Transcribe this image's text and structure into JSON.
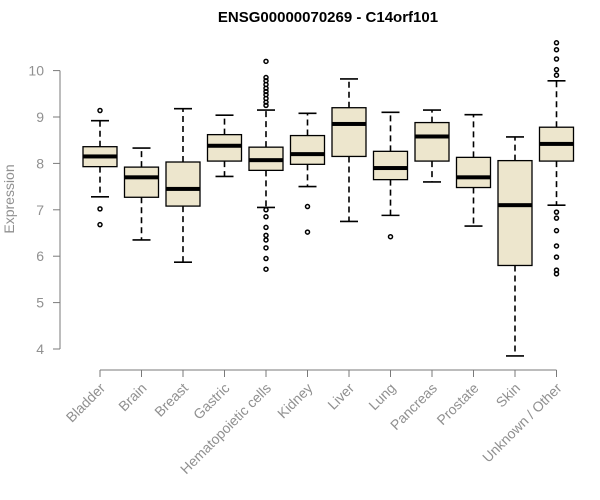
{
  "chart_data": {
    "type": "box",
    "title": "ENSG00000070269 - C14orf101",
    "xlabel": "",
    "ylabel": "Expression",
    "ylim": [
      3.8,
      10.7
    ],
    "yticks": [
      4,
      5,
      6,
      7,
      8,
      9,
      10
    ],
    "grid": false,
    "box_color": "#ede6cd",
    "categories": [
      "Bladder",
      "Brain",
      "Breast",
      "Gastric",
      "Hematopoietic cells",
      "Kidney",
      "Liver",
      "Lung",
      "Pancreas",
      "Prostate",
      "Skin",
      "Unknown / Other"
    ],
    "boxes": [
      {
        "label": "Bladder",
        "whisker_low": 7.28,
        "q1": 7.93,
        "median": 8.15,
        "q3": 8.36,
        "whisker_high": 8.92,
        "outliers": [
          9.14,
          7.02,
          6.68
        ]
      },
      {
        "label": "Brain",
        "whisker_low": 6.35,
        "q1": 7.27,
        "median": 7.7,
        "q3": 7.92,
        "whisker_high": 8.33,
        "outliers": []
      },
      {
        "label": "Breast",
        "whisker_low": 5.87,
        "q1": 7.08,
        "median": 7.45,
        "q3": 8.03,
        "whisker_high": 9.18,
        "outliers": []
      },
      {
        "label": "Gastric",
        "whisker_low": 7.72,
        "q1": 8.05,
        "median": 8.38,
        "q3": 8.62,
        "whisker_high": 9.04,
        "outliers": []
      },
      {
        "label": "Hematopoietic cells",
        "whisker_low": 7.05,
        "q1": 7.85,
        "median": 8.07,
        "q3": 8.35,
        "whisker_high": 9.15,
        "outliers": [
          10.2,
          9.85,
          9.78,
          9.7,
          9.62,
          9.55,
          9.48,
          9.4,
          9.32,
          9.25,
          7.0,
          6.85,
          6.62,
          6.45,
          6.35,
          6.18,
          5.95,
          5.72
        ]
      },
      {
        "label": "Kidney",
        "whisker_low": 7.5,
        "q1": 7.98,
        "median": 8.2,
        "q3": 8.6,
        "whisker_high": 9.08,
        "outliers": [
          7.07,
          6.52
        ]
      },
      {
        "label": "Liver",
        "whisker_low": 6.75,
        "q1": 8.15,
        "median": 8.85,
        "q3": 9.2,
        "whisker_high": 9.82,
        "outliers": []
      },
      {
        "label": "Lung",
        "whisker_low": 6.88,
        "q1": 7.65,
        "median": 7.9,
        "q3": 8.26,
        "whisker_high": 9.1,
        "outliers": [
          6.42
        ]
      },
      {
        "label": "Pancreas",
        "whisker_low": 7.6,
        "q1": 8.05,
        "median": 8.58,
        "q3": 8.88,
        "whisker_high": 9.15,
        "outliers": []
      },
      {
        "label": "Prostate",
        "whisker_low": 6.65,
        "q1": 7.48,
        "median": 7.7,
        "q3": 8.13,
        "whisker_high": 9.05,
        "outliers": []
      },
      {
        "label": "Skin",
        "whisker_low": 3.85,
        "q1": 5.8,
        "median": 7.1,
        "q3": 8.06,
        "whisker_high": 8.57,
        "outliers": []
      },
      {
        "label": "Unknown / Other",
        "whisker_low": 7.1,
        "q1": 8.05,
        "median": 8.42,
        "q3": 8.78,
        "whisker_high": 9.78,
        "outliers": [
          10.6,
          10.45,
          10.25,
          10.02,
          9.9,
          6.95,
          6.82,
          6.55,
          6.22,
          5.98,
          5.7,
          5.62
        ]
      }
    ]
  }
}
